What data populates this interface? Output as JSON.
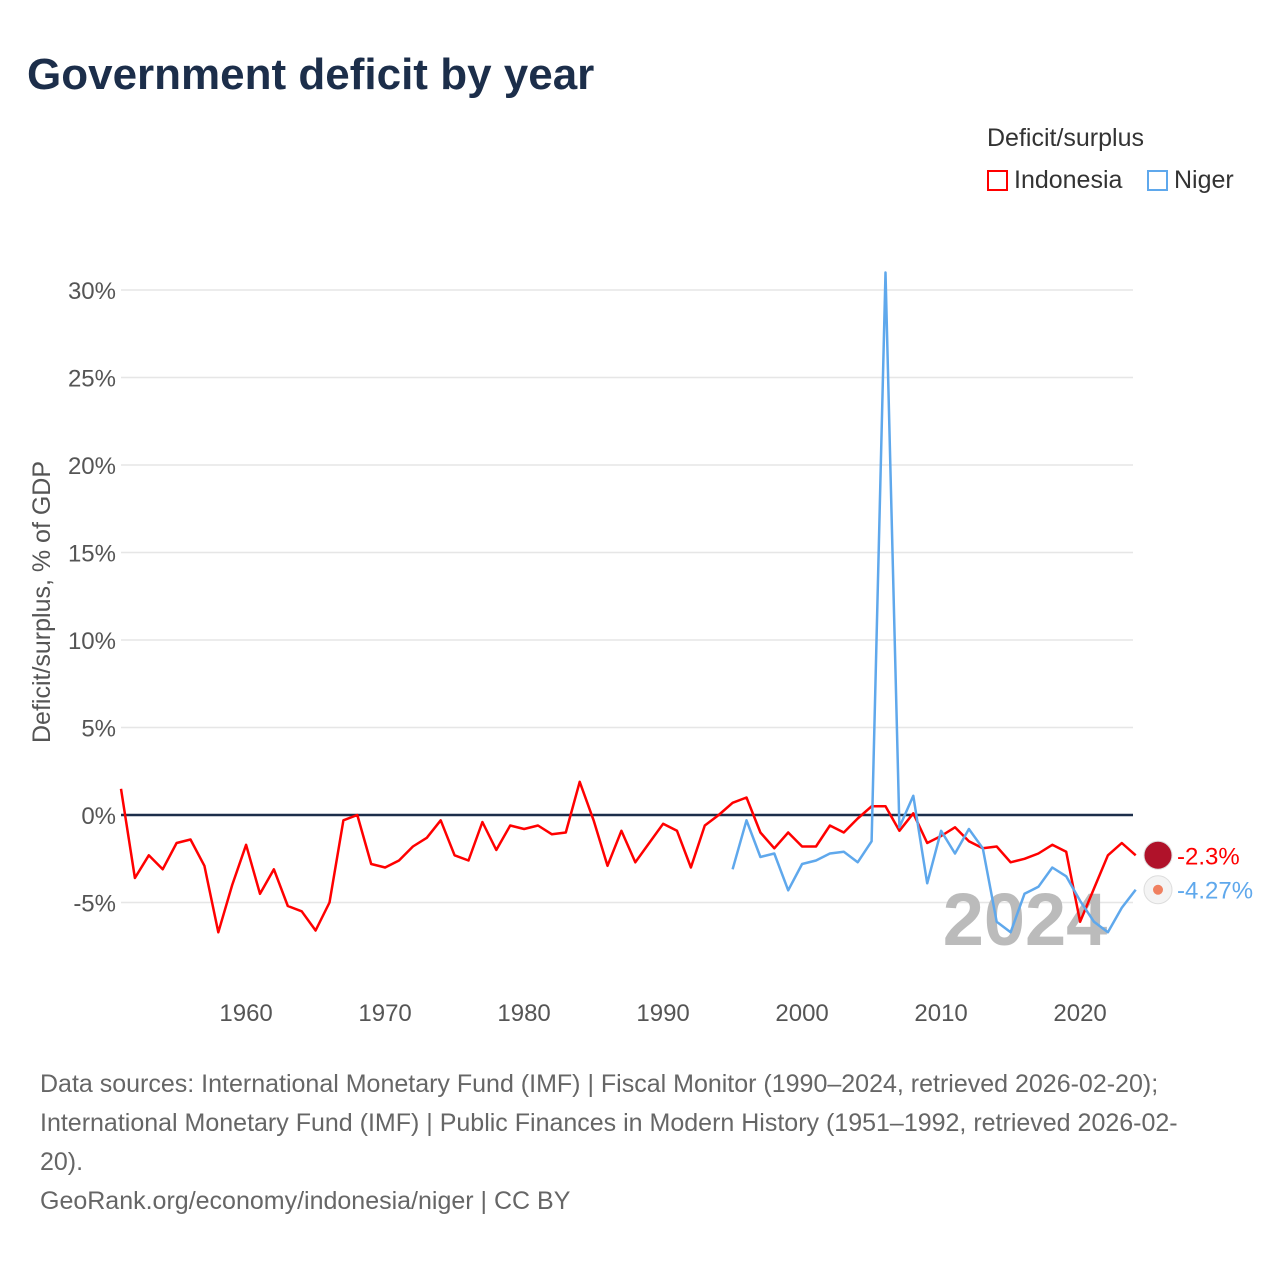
{
  "title": "Government deficit by year",
  "legend_title": "Deficit/surplus",
  "footer": {
    "line1": "Data sources: International Monetary Fund (IMF) | Fiscal Monitor (1990–2024, retrieved 2026-02-20);",
    "line2": "International Monetary Fund (IMF) | Public Finances in Modern History (1951–1992, retrieved 2026-02-",
    "line3": "20).",
    "line4": "GeoRank.org/economy/indonesia/niger | CC BY"
  },
  "chart_data": {
    "type": "line",
    "title": "Government deficit by year",
    "ylabel": "Deficit/surplus, % of GDP",
    "xlabel": "",
    "xlim": [
      1951,
      2024
    ],
    "ylim": [
      -10,
      31
    ],
    "x_ticks": [
      1960,
      1970,
      1980,
      1990,
      2000,
      2010,
      2020
    ],
    "y_ticks": [
      -5,
      0,
      5,
      10,
      15,
      20,
      25,
      30
    ],
    "y_tick_labels": [
      "-5%",
      "0%",
      "5%",
      "10%",
      "15%",
      "20%",
      "25%",
      "30%"
    ],
    "watermark_year": "2024",
    "grid": true,
    "legend_position": "top-right",
    "series": [
      {
        "name": "Indonesia",
        "color": "#ff0000",
        "end_label": "-2.3%",
        "start_year": 1951,
        "values": [
          1.5,
          -3.6,
          -2.3,
          -3.1,
          -1.6,
          -1.4,
          -2.9,
          -6.7,
          -4.0,
          -1.7,
          -4.5,
          -3.1,
          -5.2,
          -5.5,
          -6.6,
          -5.0,
          -0.3,
          0,
          -2.8,
          -3.0,
          -2.6,
          -1.8,
          -1.3,
          -0.3,
          -2.3,
          -2.6,
          -0.4,
          -2.0,
          -0.6,
          -0.8,
          -0.6,
          -1.1,
          -1.0,
          1.9,
          -0.3,
          -2.9,
          -0.9,
          -2.7,
          -1.6,
          -0.5,
          -0.9,
          -3.0,
          -0.6,
          0.0,
          0.7,
          1.0,
          -1.0,
          -1.9,
          -1.0,
          -1.8,
          -1.8,
          -0.6,
          -1.0,
          -0.2,
          0.5,
          0.5,
          -0.9,
          0.1,
          -1.6,
          -1.2,
          -0.7,
          -1.5,
          -1.9,
          -1.8,
          -2.7,
          -2.5,
          -2.2,
          -1.7,
          -2.1,
          -6.1,
          -4.2,
          -2.3,
          -1.6,
          -2.3
        ]
      },
      {
        "name": "Niger",
        "color": "#5fa8ec",
        "end_label": "-4.27%",
        "start_year": 1995,
        "values": [
          -3.1,
          -0.3,
          -2.4,
          -2.2,
          -4.3,
          -2.8,
          -2.6,
          -2.2,
          -2.1,
          -2.7,
          -1.5,
          31.0,
          -0.7,
          1.1,
          -3.9,
          -0.9,
          -2.2,
          -0.8,
          -1.9,
          -6.1,
          -6.7,
          -4.5,
          -4.1,
          -3.0,
          -3.5,
          -4.9,
          -6.1,
          -6.7,
          -5.3,
          -4.27
        ]
      }
    ]
  }
}
